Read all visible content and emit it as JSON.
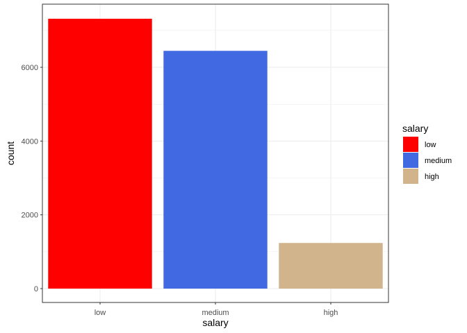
{
  "chart_data": {
    "type": "bar",
    "categories": [
      "low",
      "medium",
      "high"
    ],
    "values": [
      7316,
      6446,
      1237
    ],
    "colors": [
      "#FF0000",
      "#4169E1",
      "#D2B48C"
    ],
    "xlabel": "salary",
    "ylabel": "count",
    "yticks": [
      0,
      2000,
      4000,
      6000
    ],
    "ylim": [
      0,
      7700
    ],
    "grid": true,
    "legend": {
      "title": "salary",
      "placement": "right",
      "items": [
        "low",
        "medium",
        "high"
      ]
    }
  }
}
